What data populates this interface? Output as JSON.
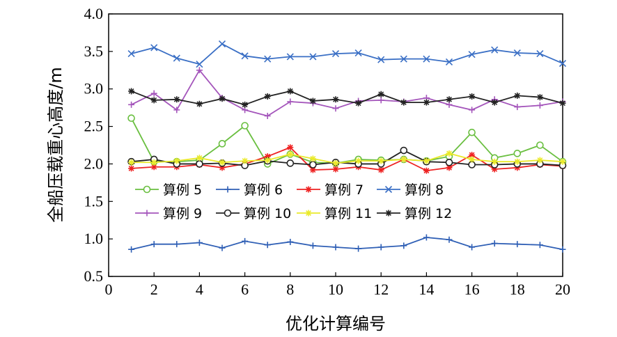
{
  "chart_data": {
    "type": "line",
    "xlabel": "优化计算编号",
    "ylabel": "全船压载重心高度/m",
    "xlim": [
      0,
      20
    ],
    "ylim": [
      0.5,
      4.0
    ],
    "x_ticks": [
      0,
      2,
      4,
      6,
      8,
      10,
      12,
      14,
      16,
      18,
      20
    ],
    "y_ticks": [
      "0.5",
      "1.0",
      "1.5",
      "2.0",
      "2.5",
      "3.0",
      "3.5",
      "4.0"
    ],
    "grid": false,
    "legend_position": "lower-center",
    "x": [
      1,
      2,
      3,
      4,
      5,
      6,
      7,
      8,
      9,
      10,
      11,
      12,
      13,
      14,
      15,
      16,
      17,
      18,
      19,
      20
    ],
    "series": [
      {
        "name": "算例 5",
        "color": "#6abf40",
        "marker": "circle-open",
        "values": [
          2.61,
          2.03,
          2.03,
          2.05,
          2.27,
          2.51,
          2.0,
          2.13,
          2.02,
          2.01,
          2.06,
          2.05,
          2.06,
          2.04,
          2.1,
          2.42,
          2.08,
          2.14,
          2.25,
          2.03
        ]
      },
      {
        "name": "算例 6",
        "color": "#2f5fb5",
        "marker": "plus",
        "values": [
          0.86,
          0.93,
          0.93,
          0.95,
          0.88,
          0.97,
          0.92,
          0.96,
          0.91,
          0.89,
          0.87,
          0.89,
          0.91,
          1.02,
          0.99,
          0.89,
          0.94,
          0.93,
          0.92,
          0.86
        ]
      },
      {
        "name": "算例 7",
        "color": "#ee2222",
        "marker": "star",
        "values": [
          1.94,
          1.96,
          1.96,
          1.99,
          1.95,
          2.0,
          2.1,
          2.22,
          1.92,
          1.93,
          1.96,
          1.92,
          2.06,
          1.91,
          1.95,
          2.12,
          1.93,
          1.95,
          1.99,
          1.97
        ]
      },
      {
        "name": "算例 8",
        "color": "#3a6fc5",
        "marker": "cross",
        "values": [
          3.47,
          3.55,
          3.41,
          3.33,
          3.6,
          3.44,
          3.4,
          3.43,
          3.43,
          3.47,
          3.48,
          3.39,
          3.4,
          3.4,
          3.36,
          3.46,
          3.52,
          3.48,
          3.47,
          3.34
        ]
      },
      {
        "name": "算例 9",
        "color": "#a455bb",
        "marker": "plus",
        "values": [
          2.79,
          2.94,
          2.72,
          3.25,
          2.88,
          2.72,
          2.64,
          2.83,
          2.81,
          2.74,
          2.84,
          2.85,
          2.83,
          2.88,
          2.79,
          2.72,
          2.86,
          2.76,
          2.78,
          2.83
        ]
      },
      {
        "name": "算例 10",
        "color": "#222222",
        "marker": "circle-open",
        "values": [
          2.03,
          2.06,
          2.0,
          2.0,
          2.01,
          1.98,
          2.04,
          2.01,
          1.99,
          2.02,
          2.0,
          2.0,
          2.18,
          2.03,
          2.02,
          1.99,
          1.99,
          2.0,
          2.0,
          1.98
        ]
      },
      {
        "name": "算例 11",
        "color": "#eaea2a",
        "marker": "star",
        "values": [
          2.02,
          2.02,
          2.04,
          2.08,
          2.02,
          2.04,
          2.05,
          2.13,
          2.07,
          2.01,
          2.04,
          2.04,
          2.06,
          2.04,
          2.14,
          2.06,
          2.03,
          2.03,
          2.05,
          2.03
        ]
      },
      {
        "name": "算例 12",
        "color": "#222222",
        "marker": "star",
        "values": [
          2.97,
          2.85,
          2.86,
          2.8,
          2.87,
          2.79,
          2.9,
          2.97,
          2.84,
          2.86,
          2.81,
          2.93,
          2.82,
          2.82,
          2.86,
          2.9,
          2.82,
          2.91,
          2.89,
          2.81
        ]
      }
    ]
  }
}
